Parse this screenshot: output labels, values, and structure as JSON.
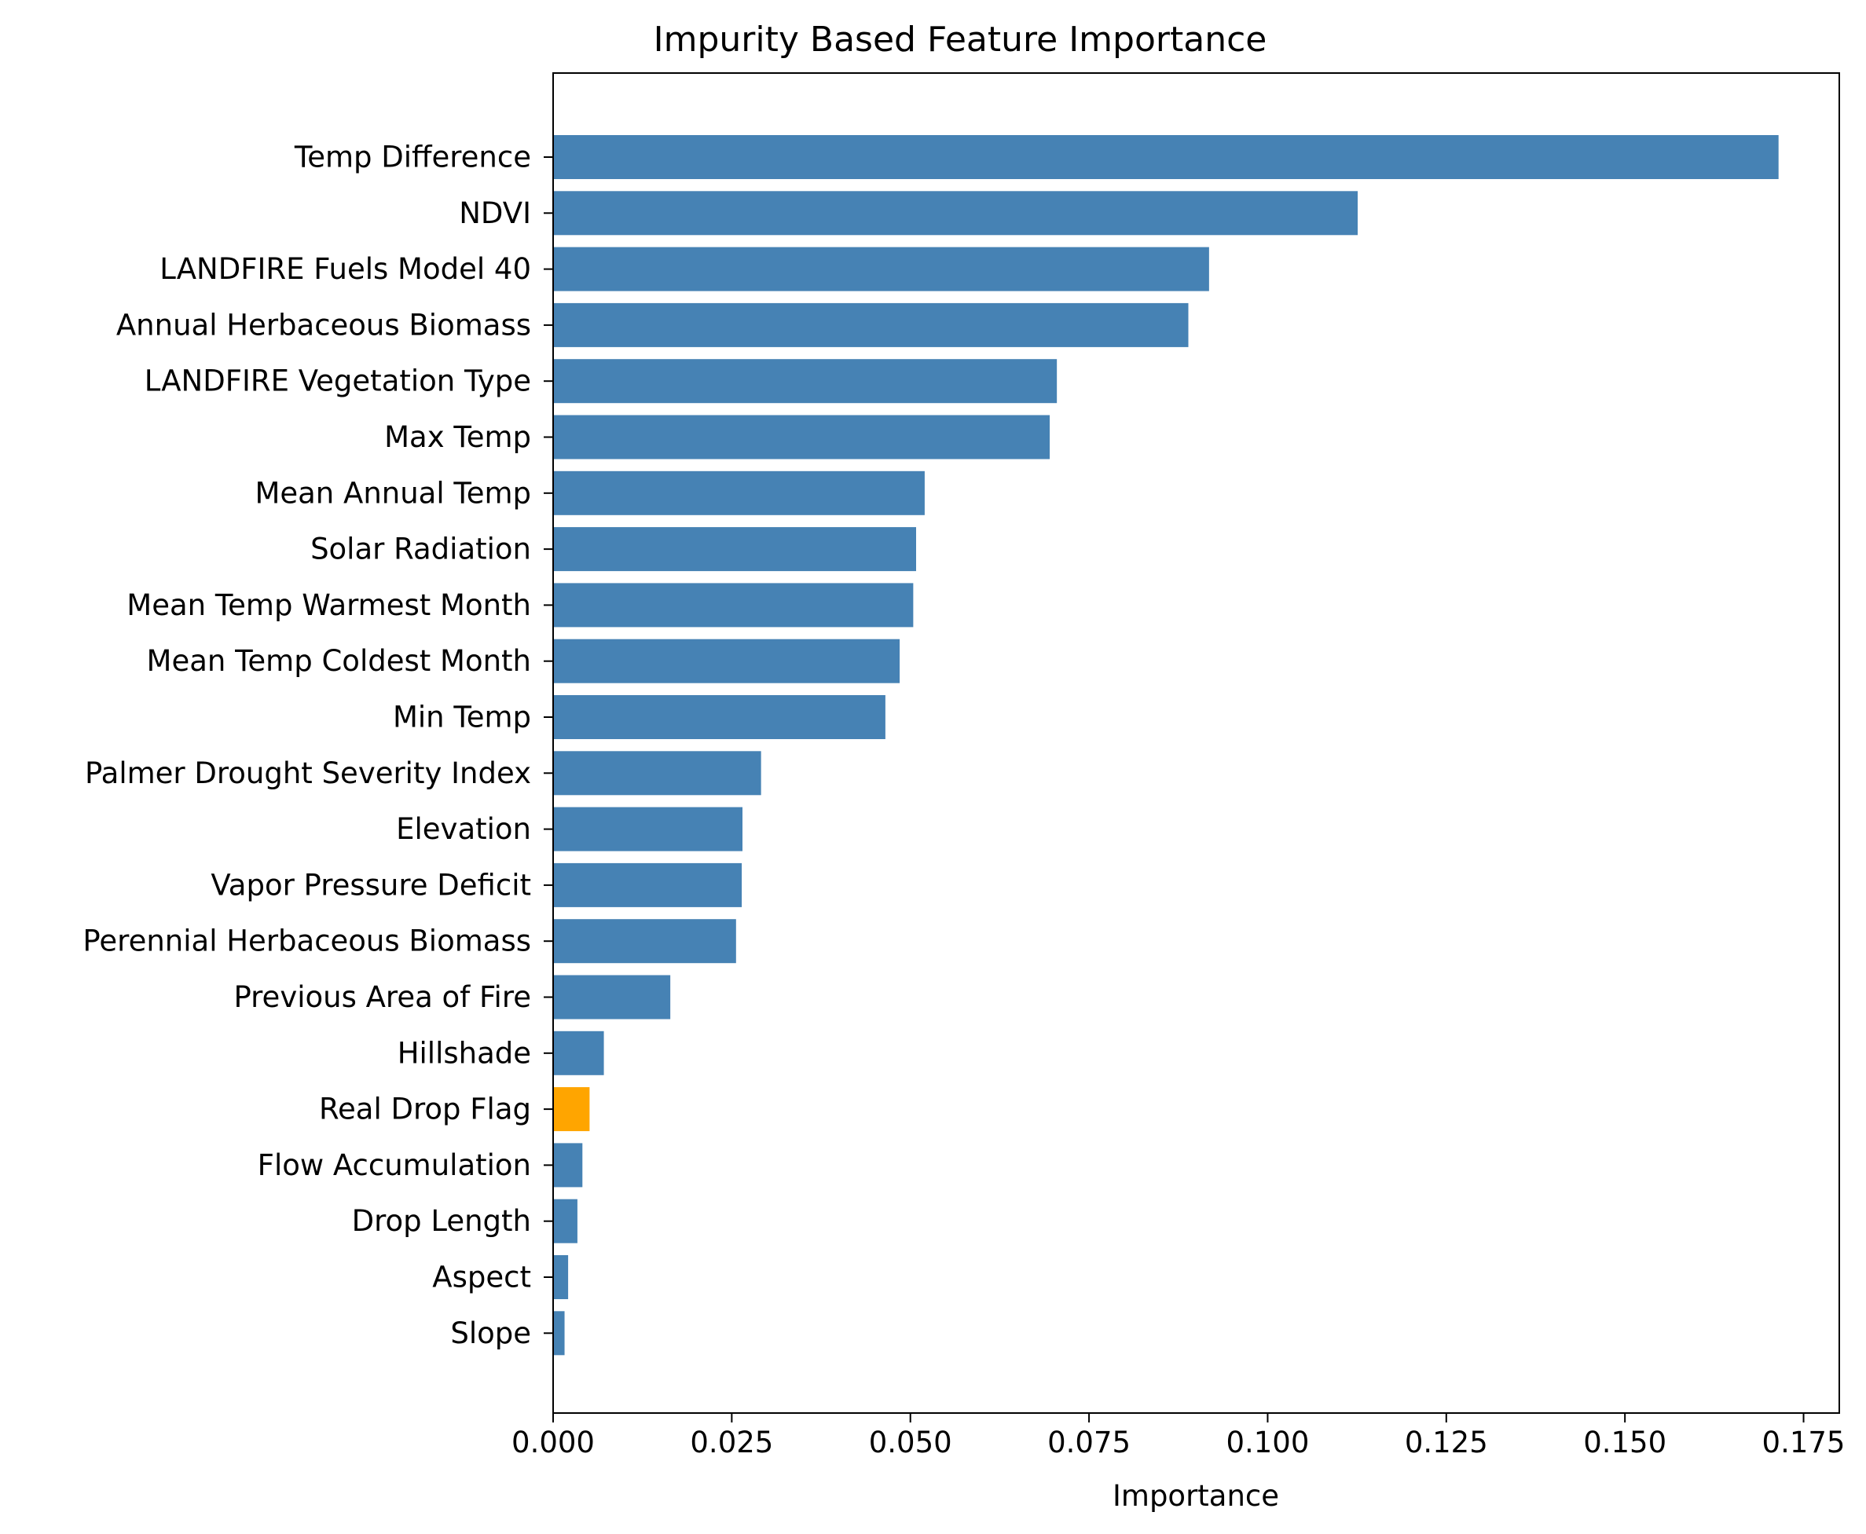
{
  "chart_data": {
    "type": "bar",
    "orientation": "horizontal",
    "title": "Impurity Based Feature Importance",
    "xlabel": "Importance",
    "ylabel": "",
    "xlim": [
      0,
      0.18
    ],
    "xticks": [
      "0.000",
      "0.025",
      "0.050",
      "0.075",
      "0.100",
      "0.125",
      "0.150",
      "0.175"
    ],
    "grid": false,
    "legend": "none",
    "categories": [
      "Temp Difference",
      "NDVI",
      "LANDFIRE Fuels Model 40",
      "Annual Herbaceous Biomass",
      "LANDFIRE Vegetation Type",
      "Max Temp",
      "Mean Annual Temp",
      "Solar Radiation",
      "Mean Temp Warmest Month",
      "Mean Temp Coldest Month",
      "Min Temp",
      "Palmer Drought Severity Index",
      "Elevation",
      "Vapor Pressure Deficit",
      "Perennial Herbaceous Biomass",
      "Previous Area of Fire",
      "Hillshade",
      "Real Drop Flag",
      "Flow Accumulation",
      "Drop Length",
      "Aspect",
      "Slope"
    ],
    "values": [
      0.1715,
      0.1126,
      0.0918,
      0.0889,
      0.0705,
      0.0695,
      0.052,
      0.0508,
      0.0504,
      0.0485,
      0.0465,
      0.0291,
      0.0265,
      0.0264,
      0.0256,
      0.0164,
      0.0071,
      0.0051,
      0.0041,
      0.0034,
      0.0021,
      0.0016
    ],
    "bar_color": "#4682b4",
    "highlight_color": "#ffa500",
    "highlight_category": "Real Drop Flag"
  }
}
